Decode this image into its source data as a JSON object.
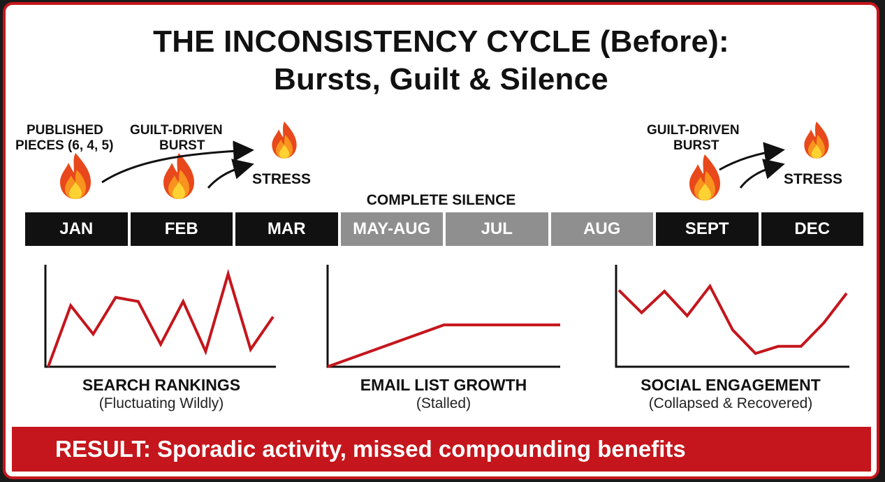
{
  "title": {
    "line1": "THE INCONSISTENCY CYCLE (Before):",
    "line2": "Bursts, Guilt & Silence"
  },
  "annotations": {
    "published": [
      "PUBLISHED",
      "PIECES (6, 4, 5)"
    ],
    "guilt_burst_1": [
      "GUILT-DRIVEN",
      "BURST"
    ],
    "stress_1": "STRESS",
    "complete_silence": "COMPLETE SILENCE",
    "guilt_burst_2": [
      "GUILT-DRIVEN",
      "BURST"
    ],
    "stress_2": "STRESS"
  },
  "icons": {
    "fire": "fire-icon",
    "sparkle": "sparkle-icon"
  },
  "timeline": [
    {
      "label": "JAN",
      "style": "dark"
    },
    {
      "label": "FEB",
      "style": "dark"
    },
    {
      "label": "MAR",
      "style": "dark"
    },
    {
      "label": "MAY-AUG",
      "style": "gray"
    },
    {
      "label": "JUL",
      "style": "gray"
    },
    {
      "label": "AUG",
      "style": "gray"
    },
    {
      "label": "SEPT",
      "style": "dark"
    },
    {
      "label": "DEC",
      "style": "dark"
    }
  ],
  "charts": [
    {
      "title": "SEARCH RANKINGS",
      "subtitle": "(Fluctuating Wildly)",
      "values": [
        0,
        60,
        32,
        68,
        64,
        22,
        64,
        15,
        91,
        17,
        49
      ]
    },
    {
      "title": "EMAIL LIST GROWTH",
      "subtitle": "(Stalled)",
      "values": [
        0,
        41,
        41
      ]
    },
    {
      "title": "SOCIAL ENGAGEMENT",
      "subtitle": "(Collapsed & Recovered)",
      "values": [
        75,
        53,
        74,
        50,
        79,
        36,
        13,
        20,
        20,
        43,
        72
      ]
    }
  ],
  "result": "RESULT: Sporadic activity, missed compounding benefits",
  "colors": {
    "accent": "#c4161c",
    "dark": "#111111",
    "gray": "#8f8f8f",
    "flame_outer": "#e8481b",
    "flame_mid": "#f7931e",
    "flame_inner": "#ffd233"
  }
}
